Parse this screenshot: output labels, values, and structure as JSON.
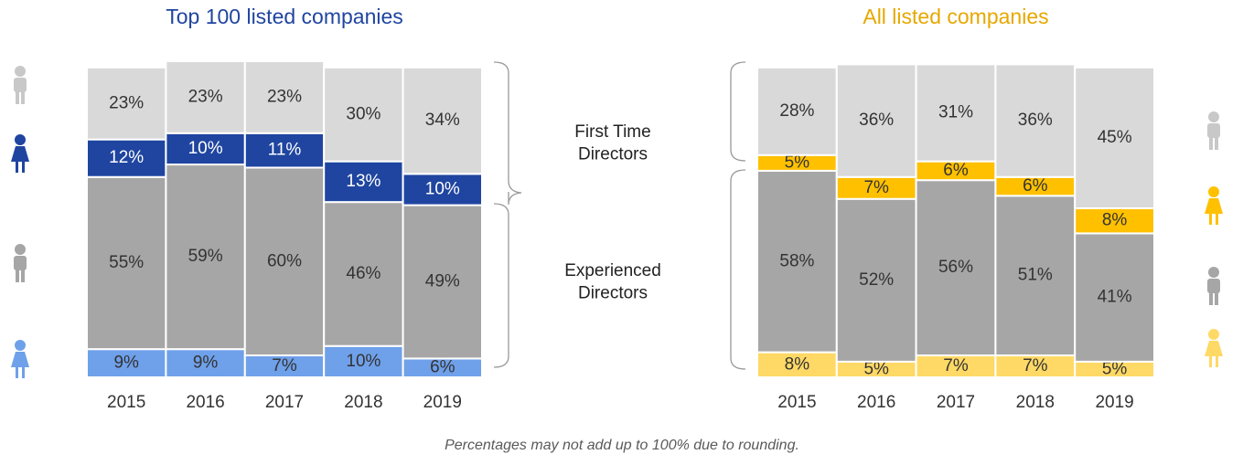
{
  "chart_data": [
    {
      "type": "stacked_bar",
      "title": "Top 100 listed companies",
      "title_color": "#1f45a0",
      "categories": [
        "2015",
        "2016",
        "2017",
        "2018",
        "2019"
      ],
      "ylim": [
        0,
        101
      ],
      "series": [
        {
          "color": "#6fa0ea",
          "values": [
            9,
            9,
            7,
            10,
            6
          ],
          "value_labels": [
            "9%",
            "9%",
            "7%",
            "10%",
            "6%"
          ]
        },
        {
          "color": "#a6a6a6",
          "values": [
            55,
            59,
            60,
            46,
            49
          ],
          "value_labels": [
            "55%",
            "59%",
            "60%",
            "46%",
            "49%"
          ]
        },
        {
          "color": "#1f45a0",
          "values": [
            12,
            10,
            11,
            13,
            10
          ],
          "value_labels": [
            "12%",
            "10%",
            "11%",
            "13%",
            "10%"
          ]
        },
        {
          "color": "#d9d9d9",
          "values": [
            23,
            23,
            23,
            30,
            34
          ],
          "value_labels": [
            "23%",
            "23%",
            "23%",
            "30%",
            "34%"
          ]
        }
      ]
    },
    {
      "type": "stacked_bar",
      "title": "All listed companies",
      "title_color": "#e6a800",
      "categories": [
        "2015",
        "2016",
        "2017",
        "2018",
        "2019"
      ],
      "ylim": [
        0,
        101
      ],
      "series": [
        {
          "color": "#ffd966",
          "values": [
            8,
            5,
            7,
            7,
            5
          ],
          "value_labels": [
            "8%",
            "5%",
            "7%",
            "7%",
            "5%"
          ]
        },
        {
          "color": "#a6a6a6",
          "values": [
            58,
            52,
            56,
            51,
            41
          ],
          "value_labels": [
            "58%",
            "52%",
            "56%",
            "51%",
            "41%"
          ]
        },
        {
          "color": "#ffc000",
          "values": [
            5,
            7,
            6,
            6,
            8
          ],
          "value_labels": [
            "5%",
            "7%",
            "6%",
            "6%",
            "8%"
          ]
        },
        {
          "color": "#d9d9d9",
          "values": [
            28,
            36,
            31,
            36,
            45
          ],
          "value_labels": [
            "28%",
            "36%",
            "31%",
            "36%",
            "45%"
          ]
        }
      ]
    }
  ],
  "annotations": [
    "First Time Directors",
    "Experienced Directors"
  ],
  "footnote": "Percentages may not add up to 100% due to rounding."
}
